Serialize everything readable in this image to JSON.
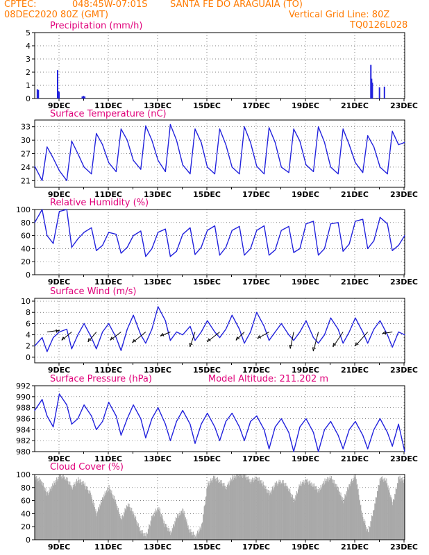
{
  "header": {
    "source": "CPTEC:",
    "coords": "048:45W-07:01S",
    "location": "SANTA FE DO ARAGUAIA (TO)",
    "init_time": "08DEC2020 80Z (GMT)",
    "grid_note": "Vertical Grid Line: 80Z",
    "model_code": "TQ0126L028",
    "colors": {
      "header": "#ff7a00",
      "panel_title": "#e0007a",
      "series": "#2222dd",
      "cloud": "#a9a9a9"
    }
  },
  "chart_data": [
    {
      "id": "precip",
      "type": "bar",
      "title": "Precipitation (mm/h)",
      "ylim": [
        0,
        5
      ],
      "yticks": [
        0,
        1,
        2,
        3,
        4,
        5
      ],
      "xticks": [
        "9DEC",
        "11DEC",
        "13DEC",
        "15DEC",
        "17DEC",
        "19DEC",
        "21DEC",
        "23DEC"
      ],
      "x_unit": "days since 08DEC2020 08Z",
      "bars": [
        {
          "x": 0.08,
          "value": 0.7
        },
        {
          "x": 0.12,
          "value": 0.65
        },
        {
          "x": 0.9,
          "value": 2.15
        },
        {
          "x": 0.93,
          "value": 0.55
        },
        {
          "x": 0.96,
          "value": 0.5
        },
        {
          "x": 1.9,
          "value": 0.15
        },
        {
          "x": 1.95,
          "value": 0.2
        },
        {
          "x": 2.0,
          "value": 0.15
        },
        {
          "x": 13.6,
          "value": 2.55
        },
        {
          "x": 13.63,
          "value": 1.5
        },
        {
          "x": 13.66,
          "value": 1.2
        },
        {
          "x": 13.85,
          "value": 0.05
        },
        {
          "x": 13.95,
          "value": 0.85
        },
        {
          "x": 14.15,
          "value": 0.9
        }
      ]
    },
    {
      "id": "temp",
      "type": "line",
      "title": "Surface Temperature (nC)",
      "ylim": [
        19.5,
        34.5
      ],
      "yticks": [
        21,
        24,
        27,
        30,
        33
      ],
      "xticks": [
        "9DEC",
        "11DEC",
        "13DEC",
        "15DEC",
        "17DEC",
        "19DEC",
        "21DEC",
        "23DEC"
      ],
      "x": [
        0,
        0.3,
        0.5,
        0.75,
        1,
        1.3,
        1.5,
        1.75,
        2,
        2.3,
        2.5,
        2.75,
        3,
        3.3,
        3.5,
        3.75,
        4,
        4.3,
        4.5,
        4.75,
        5,
        5.3,
        5.5,
        5.75,
        6,
        6.3,
        6.5,
        6.75,
        7,
        7.3,
        7.5,
        7.75,
        8,
        8.3,
        8.5,
        8.75,
        9,
        9.3,
        9.5,
        9.75,
        10,
        10.3,
        10.5,
        10.75,
        11,
        11.3,
        11.5,
        11.75,
        12,
        12.3,
        12.5,
        12.75,
        13,
        13.3,
        13.5,
        13.75,
        14,
        14.3,
        14.5,
        14.75,
        15
      ],
      "values": [
        24.2,
        21.0,
        28.5,
        26.0,
        23.2,
        21.0,
        29.8,
        27.0,
        24.0,
        22.5,
        31.5,
        29.0,
        25.0,
        23.0,
        32.5,
        30.0,
        25.5,
        23.5,
        33.2,
        30.0,
        25.5,
        23.0,
        33.5,
        30.0,
        24.5,
        22.5,
        32.5,
        29.5,
        24.0,
        22.5,
        32.5,
        29.0,
        24.0,
        22.5,
        33.0,
        29.5,
        24.2,
        22.5,
        32.8,
        29.5,
        24.0,
        22.8,
        32.5,
        29.8,
        24.5,
        23.0,
        33.0,
        29.5,
        24.0,
        22.5,
        32.5,
        29.0,
        25.0,
        22.8,
        31.0,
        28.5,
        24.0,
        22.5,
        32.0,
        29.0,
        29.5
      ]
    },
    {
      "id": "rh",
      "type": "line",
      "title": "Relative Humidity (%)",
      "ylim": [
        0,
        100
      ],
      "yticks": [
        0,
        20,
        40,
        60,
        80,
        100
      ],
      "xticks": [
        "9DEC",
        "11DEC",
        "13DEC",
        "15DEC",
        "17DEC",
        "19DEC",
        "21DEC",
        "23DEC"
      ],
      "x": [
        0,
        0.3,
        0.5,
        0.75,
        1,
        1.3,
        1.5,
        1.75,
        2,
        2.3,
        2.5,
        2.75,
        3,
        3.3,
        3.5,
        3.75,
        4,
        4.3,
        4.5,
        4.75,
        5,
        5.3,
        5.5,
        5.75,
        6,
        6.3,
        6.5,
        6.75,
        7,
        7.3,
        7.5,
        7.75,
        8,
        8.3,
        8.5,
        8.75,
        9,
        9.3,
        9.5,
        9.75,
        10,
        10.3,
        10.5,
        10.75,
        11,
        11.3,
        11.5,
        11.75,
        12,
        12.3,
        12.5,
        12.75,
        13,
        13.3,
        13.5,
        13.75,
        14,
        14.3,
        14.5,
        14.75,
        15
      ],
      "values": [
        80,
        100,
        60,
        48,
        97,
        100,
        42,
        55,
        65,
        72,
        37,
        45,
        65,
        62,
        33,
        42,
        60,
        67,
        28,
        40,
        65,
        70,
        28,
        36,
        62,
        72,
        31,
        42,
        68,
        75,
        30,
        42,
        68,
        74,
        30,
        40,
        68,
        75,
        30,
        38,
        68,
        74,
        34,
        40,
        78,
        82,
        30,
        40,
        78,
        80,
        36,
        47,
        82,
        85,
        40,
        52,
        88,
        78,
        37,
        45,
        60
      ]
    },
    {
      "id": "wind",
      "type": "line",
      "title": "Surface Wind (m/s)",
      "ylim": [
        -1,
        10.5
      ],
      "yticks": [
        0,
        2,
        4,
        6,
        8,
        10
      ],
      "xticks": [
        "9DEC",
        "11DEC",
        "13DEC",
        "15DEC",
        "17DEC",
        "19DEC",
        "21DEC",
        "23DEC"
      ],
      "x": [
        0,
        0.3,
        0.5,
        0.75,
        1,
        1.3,
        1.5,
        1.75,
        2,
        2.3,
        2.5,
        2.75,
        3,
        3.3,
        3.5,
        3.75,
        4,
        4.3,
        4.5,
        4.75,
        5,
        5.3,
        5.5,
        5.75,
        6,
        6.3,
        6.5,
        6.75,
        7,
        7.3,
        7.5,
        7.75,
        8,
        8.3,
        8.5,
        8.75,
        9,
        9.3,
        9.5,
        9.75,
        10,
        10.3,
        10.5,
        10.75,
        11,
        11.3,
        11.5,
        11.75,
        12,
        12.3,
        12.5,
        12.75,
        13,
        13.3,
        13.5,
        13.75,
        14,
        14.3,
        14.5,
        14.75,
        15
      ],
      "values": [
        2,
        3.5,
        1,
        3.5,
        4.5,
        5,
        1.5,
        4,
        6,
        3.5,
        1.5,
        4.5,
        6,
        3.5,
        1.2,
        5,
        7.5,
        4,
        2.5,
        5,
        9,
        6.5,
        3,
        4.5,
        4,
        5.5,
        3,
        4.5,
        6.5,
        4.5,
        3.5,
        5,
        7.5,
        5,
        2.5,
        4.5,
        8,
        5.5,
        3,
        4.5,
        6,
        4,
        3,
        4.5,
        6.5,
        3.5,
        2.5,
        4,
        7,
        5,
        2.5,
        4.5,
        7,
        4.5,
        2.5,
        5,
        6.5,
        4,
        1.8,
        4.5,
        4
      ],
      "arrows": [
        {
          "x": 0.5,
          "u": 1.5,
          "v": 0.2
        },
        {
          "x": 1.5,
          "u": -1.2,
          "v": -1
        },
        {
          "x": 2.5,
          "u": -1,
          "v": -1.2
        },
        {
          "x": 3.5,
          "u": -1.3,
          "v": -1
        },
        {
          "x": 4.5,
          "u": -1.6,
          "v": -1.3
        },
        {
          "x": 5.5,
          "u": -1.2,
          "v": -0.5
        },
        {
          "x": 6.5,
          "u": -0.6,
          "v": -1.8
        },
        {
          "x": 7.5,
          "u": -1.5,
          "v": -1.2
        },
        {
          "x": 8.5,
          "u": -1,
          "v": -1
        },
        {
          "x": 9.5,
          "u": -1.4,
          "v": -0.8
        },
        {
          "x": 10.5,
          "u": -0.4,
          "v": -2
        },
        {
          "x": 11.5,
          "u": -0.6,
          "v": -2.3
        },
        {
          "x": 12.5,
          "u": -1.2,
          "v": -1.8
        },
        {
          "x": 13.5,
          "u": -1.5,
          "v": -1.7
        },
        {
          "x": 14.5,
          "u": -1.2,
          "v": -0.2
        }
      ]
    },
    {
      "id": "pres",
      "type": "line",
      "title": "Surface Pressure (hPa)",
      "note_label": "Model Altitude:",
      "note_value": "211.202 m",
      "ylim": [
        980,
        992
      ],
      "yticks": [
        980,
        982,
        984,
        986,
        988,
        990,
        992
      ],
      "xticks": [
        "9DEC",
        "11DEC",
        "13DEC",
        "15DEC",
        "17DEC",
        "19DEC",
        "21DEC",
        "23DEC"
      ],
      "x": [
        0,
        0.3,
        0.5,
        0.75,
        1,
        1.3,
        1.5,
        1.75,
        2,
        2.3,
        2.5,
        2.75,
        3,
        3.3,
        3.5,
        3.75,
        4,
        4.3,
        4.5,
        4.75,
        5,
        5.3,
        5.5,
        5.75,
        6,
        6.3,
        6.5,
        6.75,
        7,
        7.3,
        7.5,
        7.75,
        8,
        8.3,
        8.5,
        8.75,
        9,
        9.3,
        9.5,
        9.75,
        10,
        10.3,
        10.5,
        10.75,
        11,
        11.3,
        11.5,
        11.75,
        12,
        12.3,
        12.5,
        12.75,
        13,
        13.3,
        13.5,
        13.75,
        14,
        14.3,
        14.5,
        14.75,
        15
      ],
      "values": [
        987.5,
        989.5,
        986.5,
        984.5,
        990.5,
        988.5,
        985,
        986,
        988.5,
        986.5,
        984,
        985.5,
        989,
        986.5,
        983,
        986,
        988.5,
        986,
        982.5,
        986,
        988,
        985,
        982,
        985.5,
        987.5,
        985,
        981.5,
        985,
        987,
        984.5,
        982,
        985.5,
        987,
        984.5,
        982,
        985.5,
        986.5,
        984,
        980.5,
        984.5,
        986,
        983.5,
        980,
        984.5,
        986,
        983.5,
        980,
        984,
        985.5,
        983,
        980.5,
        984,
        985.5,
        983,
        980.5,
        984,
        986,
        983.5,
        981,
        985,
        980
      ]
    },
    {
      "id": "cloud",
      "type": "area",
      "title": "Cloud Cover (%)",
      "ylim": [
        0,
        100
      ],
      "yticks": [
        0,
        20,
        40,
        60,
        80,
        100
      ],
      "xticks": [
        "9DEC",
        "11DEC",
        "13DEC",
        "15DEC",
        "17DEC",
        "19DEC",
        "21DEC",
        "23DEC"
      ],
      "x": [
        0,
        0.25,
        0.5,
        0.75,
        1,
        1.25,
        1.5,
        1.75,
        2,
        2.25,
        2.5,
        2.75,
        3,
        3.25,
        3.5,
        3.75,
        4,
        4.25,
        4.5,
        4.75,
        5,
        5.25,
        5.5,
        5.75,
        6,
        6.25,
        6.5,
        6.75,
        7,
        7.25,
        7.5,
        7.75,
        8,
        8.25,
        8.5,
        8.75,
        9,
        9.25,
        9.5,
        9.75,
        10,
        10.25,
        10.5,
        10.75,
        11,
        11.25,
        11.5,
        11.75,
        12,
        12.25,
        12.5,
        12.75,
        13,
        13.25,
        13.5,
        13.75,
        14,
        14.25,
        14.5,
        14.75,
        15
      ],
      "values": [
        95,
        90,
        70,
        85,
        98,
        95,
        80,
        92,
        85,
        70,
        40,
        65,
        80,
        60,
        30,
        55,
        40,
        15,
        5,
        35,
        50,
        25,
        10,
        35,
        45,
        15,
        5,
        20,
        85,
        95,
        90,
        80,
        95,
        100,
        98,
        90,
        95,
        85,
        70,
        85,
        90,
        80,
        60,
        85,
        90,
        85,
        75,
        90,
        95,
        80,
        60,
        85,
        98,
        40,
        10,
        50,
        95,
        90,
        55,
        95,
        90
      ]
    }
  ]
}
